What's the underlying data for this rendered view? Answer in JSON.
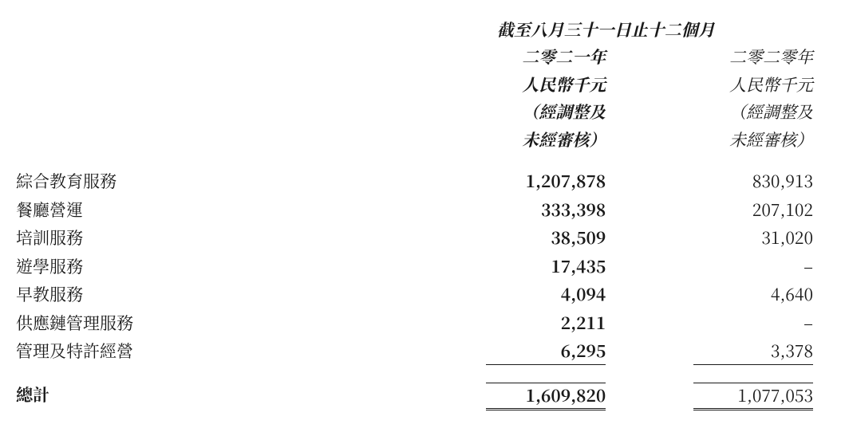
{
  "header": {
    "period_span": "截至八月三十一日止十二個月",
    "year_2021": "二零二一年",
    "year_2020": "二零二零年",
    "unit_2021": "人民幣千元",
    "unit_2020": "人民幣千元",
    "note_line1_2021": "（經調整及",
    "note_line1_2020": "（經調整及",
    "note_line2_2021": "未經審核）",
    "note_line2_2020": "未經審核）"
  },
  "rows": [
    {
      "label": "綜合教育服務",
      "v2021": "1,207,878",
      "v2020": "830,913"
    },
    {
      "label": "餐廳營運",
      "v2021": "333,398",
      "v2020": "207,102"
    },
    {
      "label": "培訓服務",
      "v2021": "38,509",
      "v2020": "31,020"
    },
    {
      "label": "遊學服務",
      "v2021": "17,435",
      "v2020": "–"
    },
    {
      "label": "早教服務",
      "v2021": "4,094",
      "v2020": "4,640"
    },
    {
      "label": "供應鏈管理服務",
      "v2021": "2,211",
      "v2020": "–"
    },
    {
      "label": "管理及特許經營",
      "v2021": "6,295",
      "v2020": "3,378"
    }
  ],
  "total": {
    "label": "總計",
    "v2021": "1,609,820",
    "v2020": "1,077,053"
  },
  "style": {
    "type": "table",
    "background_color": "#ffffff",
    "text_color": "#1a1a1a",
    "rule_color": "#1a1a1a",
    "font_family": "serif-CJK",
    "base_fontsize": 21,
    "col_widths_pct": [
      48,
      26,
      26
    ],
    "col_alignment": [
      "left",
      "right",
      "right"
    ],
    "header_italic": true,
    "col2021_bold": true,
    "rules": {
      "after_last_row": "single-top-bottom",
      "after_total": "double-bottom"
    }
  }
}
